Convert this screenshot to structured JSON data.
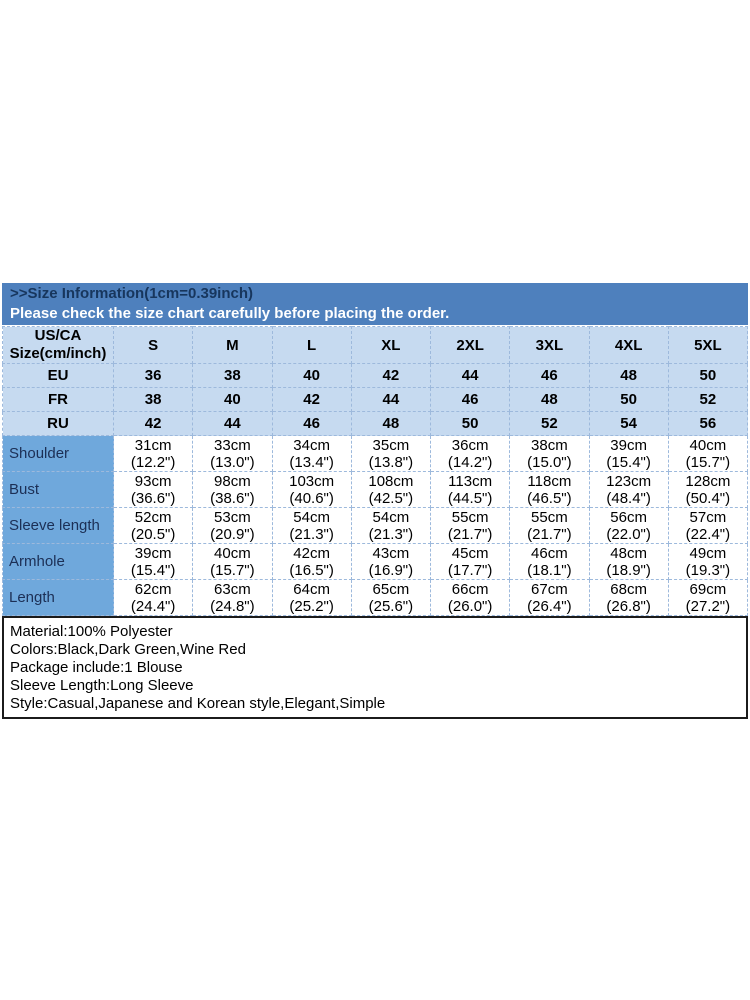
{
  "header": {
    "line1": ">>Size Information(1cm=0.39inch)",
    "line2": "Please check the size chart carefully before placing the order."
  },
  "size_table": {
    "corner_label_line1": "US/CA",
    "corner_label_line2": "Size(cm/inch)",
    "size_headers": [
      "S",
      "M",
      "L",
      "XL",
      "2XL",
      "3XL",
      "4XL",
      "5XL"
    ],
    "region_rows": [
      {
        "label": "EU",
        "values": [
          "36",
          "38",
          "40",
          "42",
          "44",
          "46",
          "48",
          "50"
        ]
      },
      {
        "label": "FR",
        "values": [
          "38",
          "40",
          "42",
          "44",
          "46",
          "48",
          "50",
          "52"
        ]
      },
      {
        "label": "RU",
        "values": [
          "42",
          "44",
          "46",
          "48",
          "50",
          "52",
          "54",
          "56"
        ]
      }
    ],
    "measurement_rows": [
      {
        "label": "Shoulder",
        "values": [
          {
            "cm": "31cm",
            "inch": "(12.2\")"
          },
          {
            "cm": "33cm",
            "inch": "(13.0\")"
          },
          {
            "cm": "34cm",
            "inch": "(13.4\")"
          },
          {
            "cm": "35cm",
            "inch": "(13.8\")"
          },
          {
            "cm": "36cm",
            "inch": "(14.2\")"
          },
          {
            "cm": "38cm",
            "inch": "(15.0\")"
          },
          {
            "cm": "39cm",
            "inch": "(15.4\")"
          },
          {
            "cm": "40cm",
            "inch": "(15.7\")"
          }
        ]
      },
      {
        "label": "Bust",
        "values": [
          {
            "cm": "93cm",
            "inch": "(36.6\")"
          },
          {
            "cm": "98cm",
            "inch": "(38.6\")"
          },
          {
            "cm": "103cm",
            "inch": "(40.6\")"
          },
          {
            "cm": "108cm",
            "inch": "(42.5\")"
          },
          {
            "cm": "113cm",
            "inch": "(44.5\")"
          },
          {
            "cm": "118cm",
            "inch": "(46.5\")"
          },
          {
            "cm": "123cm",
            "inch": "(48.4\")"
          },
          {
            "cm": "128cm",
            "inch": "(50.4\")"
          }
        ]
      },
      {
        "label": "Sleeve length",
        "values": [
          {
            "cm": "52cm",
            "inch": "(20.5\")"
          },
          {
            "cm": "53cm",
            "inch": "(20.9\")"
          },
          {
            "cm": "54cm",
            "inch": "(21.3\")"
          },
          {
            "cm": "54cm",
            "inch": "(21.3\")"
          },
          {
            "cm": "55cm",
            "inch": "(21.7\")"
          },
          {
            "cm": "55cm",
            "inch": "(21.7\")"
          },
          {
            "cm": "56cm",
            "inch": "(22.0\")"
          },
          {
            "cm": "57cm",
            "inch": "(22.4\")"
          }
        ]
      },
      {
        "label": "Armhole",
        "values": [
          {
            "cm": "39cm",
            "inch": "(15.4\")"
          },
          {
            "cm": "40cm",
            "inch": "(15.7\")"
          },
          {
            "cm": "42cm",
            "inch": "(16.5\")"
          },
          {
            "cm": "43cm",
            "inch": "(16.9\")"
          },
          {
            "cm": "45cm",
            "inch": "(17.7\")"
          },
          {
            "cm": "46cm",
            "inch": "(18.1\")"
          },
          {
            "cm": "48cm",
            "inch": "(18.9\")"
          },
          {
            "cm": "49cm",
            "inch": "(19.3\")"
          }
        ]
      },
      {
        "label": "Length",
        "values": [
          {
            "cm": "62cm",
            "inch": "(24.4\")"
          },
          {
            "cm": "63cm",
            "inch": "(24.8\")"
          },
          {
            "cm": "64cm",
            "inch": "(25.2\")"
          },
          {
            "cm": "65cm",
            "inch": "(25.6\")"
          },
          {
            "cm": "66cm",
            "inch": "(26.0\")"
          },
          {
            "cm": "67cm",
            "inch": "(26.4\")"
          },
          {
            "cm": "68cm",
            "inch": "(26.8\")"
          },
          {
            "cm": "69cm",
            "inch": "(27.2\")"
          }
        ]
      }
    ]
  },
  "product_info": {
    "lines": [
      "Material:100% Polyester",
      "Colors:Black,Dark Green,Wine Red",
      "Package include:1 Blouse",
      "Sleeve Length:Long Sleeve",
      "Style:Casual,Japanese and Korean style,Elegant,Simple"
    ]
  },
  "colors": {
    "header_bar_bg": "#4e80bd",
    "header_title_text": "#17365d",
    "header_subtitle_text": "#ffffff",
    "size_row_bg": "#c6daf0",
    "measurement_label_bg": "#6fa8dc",
    "table_border": "#9db9dc",
    "info_box_border": "#1b1b1b"
  }
}
